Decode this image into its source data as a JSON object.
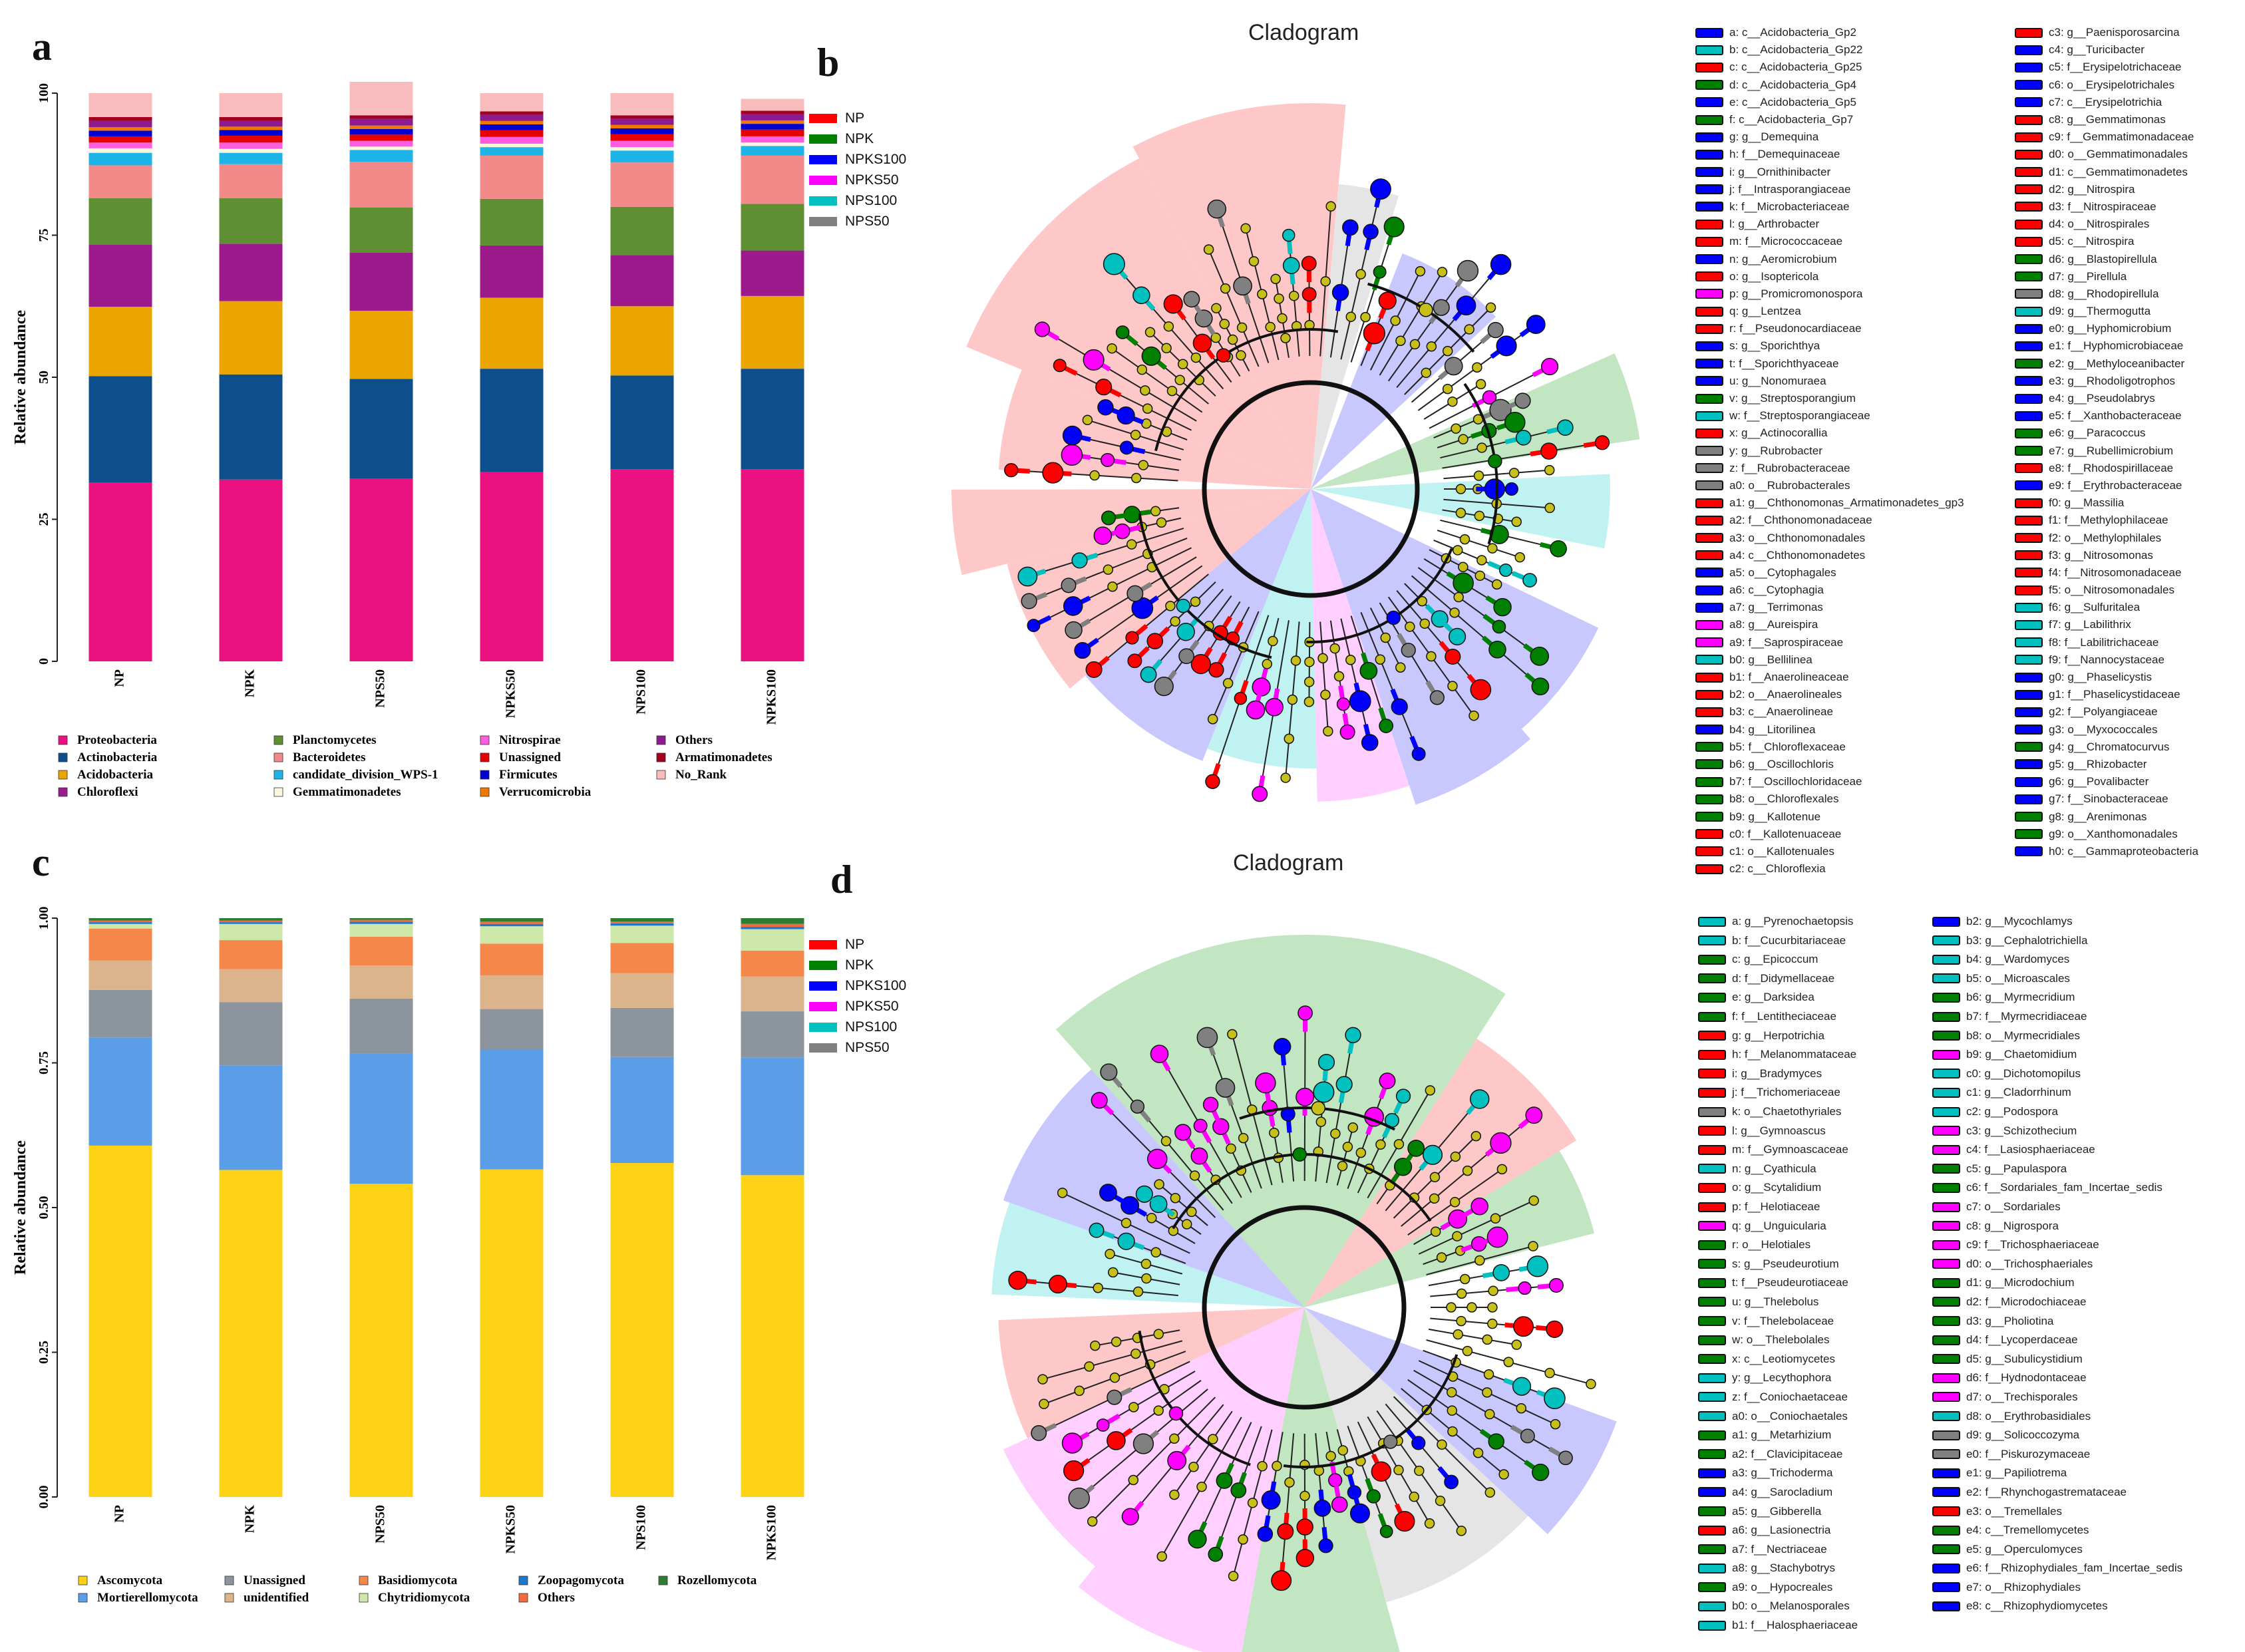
{
  "panels": {
    "a": "a",
    "b": "b",
    "c": "c",
    "d": "d"
  },
  "cladogram_titles": {
    "b": "Cladogram",
    "d": "Cladogram"
  },
  "groups": [
    {
      "name": "NP",
      "color": "#ff0000"
    },
    {
      "name": "NPK",
      "color": "#008000"
    },
    {
      "name": "NPKS100",
      "color": "#0000ff"
    },
    {
      "name": "NPKS50",
      "color": "#ff00ff"
    },
    {
      "name": "NPS100",
      "color": "#00c0c0"
    },
    {
      "name": "NPS50",
      "color": "#808080"
    }
  ],
  "chart_data": [
    {
      "panel": "a",
      "type": "bar",
      "stacked": true,
      "categories": [
        "NP",
        "NPK",
        "NPS50",
        "NPKS50",
        "NPS100",
        "NPKS100"
      ],
      "ylabel": "Relative abundance",
      "ylim": [
        0,
        100
      ],
      "yticks": [
        "0",
        "25",
        "50",
        "75",
        "100"
      ],
      "series": [
        {
          "name": "Proteobacteria",
          "color": "#ec1180",
          "values": [
            31.5,
            32.0,
            32.2,
            33.3,
            33.8,
            33.8
          ]
        },
        {
          "name": "Actinobacteria",
          "color": "#0c4f8c",
          "values": [
            18.7,
            18.5,
            17.5,
            18.2,
            16.5,
            17.7
          ]
        },
        {
          "name": "Acidobacteria",
          "color": "#eaa500",
          "values": [
            12.2,
            12.9,
            12.0,
            12.5,
            12.2,
            12.8
          ]
        },
        {
          "name": "Chloroflexi",
          "color": "#9c1a8c",
          "values": [
            10.9,
            10.1,
            10.2,
            9.2,
            9.0,
            8.0
          ]
        },
        {
          "name": "Planctomycetes",
          "color": "#5e8f32",
          "values": [
            8.2,
            8.0,
            8.0,
            8.2,
            8.5,
            8.2
          ]
        },
        {
          "name": "Bacteroidetes",
          "color": "#f38a8a",
          "values": [
            5.8,
            6.0,
            8.0,
            7.6,
            7.8,
            8.5
          ]
        },
        {
          "name": "candidate_division_WPS-1",
          "color": "#1eb4e8",
          "values": [
            2.2,
            2.0,
            2.1,
            1.5,
            2.1,
            1.7
          ]
        },
        {
          "name": "Gemmatimonadetes",
          "color": "#fbf7dc",
          "values": [
            0.8,
            0.7,
            0.6,
            0.6,
            0.6,
            0.6
          ]
        },
        {
          "name": "Nitrospirae",
          "color": "#ff5de0",
          "values": [
            1.0,
            1.1,
            1.0,
            1.2,
            1.1,
            1.1
          ]
        },
        {
          "name": "Unassigned",
          "color": "#e60000",
          "values": [
            1.1,
            1.2,
            1.1,
            1.2,
            1.2,
            1.2
          ]
        },
        {
          "name": "Firmicutes",
          "color": "#0000d0",
          "values": [
            1.0,
            1.0,
            1.0,
            1.0,
            1.0,
            1.0
          ]
        },
        {
          "name": "Verrucomicrobia",
          "color": "#f07800",
          "values": [
            0.6,
            0.6,
            0.6,
            0.6,
            0.6,
            0.6
          ]
        },
        {
          "name": "Others",
          "color": "#8e1b8e",
          "values": [
            1.2,
            1.1,
            1.2,
            1.1,
            1.1,
            1.1
          ]
        },
        {
          "name": "Armatimonadetes",
          "color": "#a1001f",
          "values": [
            0.6,
            0.6,
            0.6,
            0.6,
            0.6,
            0.6
          ]
        },
        {
          "name": "No_Rank",
          "color": "#f9bcbc",
          "values": [
            4.2,
            4.2,
            5.9,
            3.2,
            3.9,
            2.1
          ]
        }
      ]
    },
    {
      "panel": "c",
      "type": "bar",
      "stacked": true,
      "categories": [
        "NP",
        "NPK",
        "NPS50",
        "NPKS50",
        "NPS100",
        "NPKS100"
      ],
      "ylabel": "Relative abundance",
      "ylim": [
        0,
        1
      ],
      "yticks": [
        "0.00",
        "0.25",
        "0.50",
        "0.75",
        "1.00"
      ],
      "series": [
        {
          "name": "Ascomycota",
          "color": "#fdd214",
          "values": [
            0.607,
            0.565,
            0.541,
            0.566,
            0.577,
            0.556
          ]
        },
        {
          "name": "Mortierellomycota",
          "color": "#5a9ee8",
          "values": [
            0.187,
            0.18,
            0.225,
            0.207,
            0.183,
            0.203
          ]
        },
        {
          "name": "Unassigned",
          "color": "#8c959d",
          "values": [
            0.082,
            0.11,
            0.095,
            0.07,
            0.085,
            0.08
          ]
        },
        {
          "name": "unidentified",
          "color": "#dcb48c",
          "values": [
            0.051,
            0.057,
            0.057,
            0.058,
            0.06,
            0.06
          ]
        },
        {
          "name": "Basidiomycota",
          "color": "#f5874a",
          "values": [
            0.055,
            0.05,
            0.05,
            0.055,
            0.052,
            0.045
          ]
        },
        {
          "name": "Chytridiomycota",
          "color": "#cde8a8",
          "values": [
            0.008,
            0.028,
            0.022,
            0.03,
            0.03,
            0.037
          ]
        },
        {
          "name": "Zoopagomycota",
          "color": "#1f78c8",
          "values": [
            0.003,
            0.003,
            0.004,
            0.004,
            0.004,
            0.004
          ]
        },
        {
          "name": "Others",
          "color": "#f36a3c",
          "values": [
            0.003,
            0.003,
            0.003,
            0.004,
            0.003,
            0.005
          ]
        },
        {
          "name": "Rozellomycota",
          "color": "#2e7d32",
          "values": [
            0.004,
            0.004,
            0.003,
            0.006,
            0.006,
            0.01
          ]
        }
      ]
    }
  ],
  "legend_b": [
    [
      "a: c__Acidobacteria_Gp2",
      "#0000ff"
    ],
    [
      "b: c__Acidobacteria_Gp22",
      "#00c0c0"
    ],
    [
      "c: c__Acidobacteria_Gp25",
      "#ff0000"
    ],
    [
      "d: c__Acidobacteria_Gp4",
      "#008000"
    ],
    [
      "e: c__Acidobacteria_Gp5",
      "#0000ff"
    ],
    [
      "f: c__Acidobacteria_Gp7",
      "#008000"
    ],
    [
      "g: g__Demequina",
      "#0000ff"
    ],
    [
      "h: f__Demequinaceae",
      "#0000ff"
    ],
    [
      "i: g__Ornithinibacter",
      "#0000ff"
    ],
    [
      "j: f__Intrasporangiaceae",
      "#0000ff"
    ],
    [
      "k: f__Microbacteriaceae",
      "#0000ff"
    ],
    [
      "l: g__Arthrobacter",
      "#ff0000"
    ],
    [
      "m: f__Micrococcaceae",
      "#ff0000"
    ],
    [
      "n: g__Aeromicrobium",
      "#0000ff"
    ],
    [
      "o: g__Isoptericola",
      "#ff0000"
    ],
    [
      "p: g__Promicromonospora",
      "#ff00ff"
    ],
    [
      "q: g__Lentzea",
      "#ff0000"
    ],
    [
      "r: f__Pseudonocardiaceae",
      "#ff0000"
    ],
    [
      "s: g__Sporichthya",
      "#0000ff"
    ],
    [
      "t: f__Sporichthyaceae",
      "#0000ff"
    ],
    [
      "u: g__Nonomuraea",
      "#0000ff"
    ],
    [
      "v: g__Streptosporangium",
      "#008000"
    ],
    [
      "w: f__Streptosporangiaceae",
      "#00c0c0"
    ],
    [
      "x: g__Actinocorallia",
      "#ff0000"
    ],
    [
      "y: g__Rubrobacter",
      "#808080"
    ],
    [
      "z: f__Rubrobacteraceae",
      "#808080"
    ],
    [
      "a0: o__Rubrobacterales",
      "#808080"
    ],
    [
      "a1: g__Chthonomonas_Armatimonadetes_gp3",
      "#ff0000"
    ],
    [
      "a2: f__Chthonomonadaceae",
      "#ff0000"
    ],
    [
      "a3: o__Chthonomonadales",
      "#ff0000"
    ],
    [
      "a4: c__Chthonomonadetes",
      "#ff0000"
    ],
    [
      "a5: o__Cytophagales",
      "#0000ff"
    ],
    [
      "a6: c__Cytophagia",
      "#0000ff"
    ],
    [
      "a7: g__Terrimonas",
      "#0000ff"
    ],
    [
      "a8: g__Aureispira",
      "#ff00ff"
    ],
    [
      "a9: f__Saprospiraceae",
      "#ff00ff"
    ],
    [
      "b0: g__Bellilinea",
      "#00c0c0"
    ],
    [
      "b1: f__Anaerolineaceae",
      "#ff0000"
    ],
    [
      "b2: o__Anaerolineales",
      "#ff0000"
    ],
    [
      "b3: c__Anaerolineae",
      "#ff0000"
    ],
    [
      "b4: g__Litorilinea",
      "#0000ff"
    ],
    [
      "b5: f__Chloroflexaceae",
      "#008000"
    ],
    [
      "b6: g__Oscillochloris",
      "#008000"
    ],
    [
      "b7: f__Oscillochloridaceae",
      "#008000"
    ],
    [
      "b8: o__Chloroflexales",
      "#008000"
    ],
    [
      "b9: g__Kallotenue",
      "#008000"
    ],
    [
      "c0: f__Kallotenuaceae",
      "#ff0000"
    ],
    [
      "c1: o__Kallotenuales",
      "#ff0000"
    ],
    [
      "c2: c__Chloroflexia",
      "#ff0000"
    ],
    [
      "c3: g__Paenisporosarcina",
      "#ff0000"
    ],
    [
      "c4: g__Turicibacter",
      "#0000ff"
    ],
    [
      "c5: f__Erysipelotrichaceae",
      "#0000ff"
    ],
    [
      "c6: o__Erysipelotrichales",
      "#0000ff"
    ],
    [
      "c7: c__Erysipelotrichia",
      "#0000ff"
    ],
    [
      "c8: g__Gemmatimonas",
      "#ff0000"
    ],
    [
      "c9: f__Gemmatimonadaceae",
      "#ff0000"
    ],
    [
      "d0: o__Gemmatimonadales",
      "#ff0000"
    ],
    [
      "d1: c__Gemmatimonadetes",
      "#ff0000"
    ],
    [
      "d2: g__Nitrospira",
      "#ff0000"
    ],
    [
      "d3: f__Nitrospiraceae",
      "#ff0000"
    ],
    [
      "d4: o__Nitrospirales",
      "#ff0000"
    ],
    [
      "d5: c__Nitrospira",
      "#ff0000"
    ],
    [
      "d6: g__Blastopirellula",
      "#008000"
    ],
    [
      "d7: g__Pirellula",
      "#008000"
    ],
    [
      "d8: g__Rhodopirellula",
      "#808080"
    ],
    [
      "d9: g__Thermogutta",
      "#00c0c0"
    ],
    [
      "e0: g__Hyphomicrobium",
      "#0000ff"
    ],
    [
      "e1: f__Hyphomicrobiaceae",
      "#0000ff"
    ],
    [
      "e2: g__Methyloceanibacter",
      "#008000"
    ],
    [
      "e3: g__Rhodoligotrophos",
      "#0000ff"
    ],
    [
      "e4: g__Pseudolabrys",
      "#0000ff"
    ],
    [
      "e5: f__Xanthobacteraceae",
      "#0000ff"
    ],
    [
      "e6: g__Paracoccus",
      "#008000"
    ],
    [
      "e7: g__Rubellimicrobium",
      "#008000"
    ],
    [
      "e8: f__Rhodospirillaceae",
      "#ff0000"
    ],
    [
      "e9: f__Erythrobacteraceae",
      "#0000ff"
    ],
    [
      "f0: g__Massilia",
      "#ff0000"
    ],
    [
      "f1: f__Methylophilaceae",
      "#ff0000"
    ],
    [
      "f2: o__Methylophilales",
      "#ff0000"
    ],
    [
      "f3: g__Nitrosomonas",
      "#ff0000"
    ],
    [
      "f4: f__Nitrosomonadaceae",
      "#ff0000"
    ],
    [
      "f5: o__Nitrosomonadales",
      "#ff0000"
    ],
    [
      "f6: g__Sulfuritalea",
      "#00c0c0"
    ],
    [
      "f7: g__Labilithrix",
      "#00c0c0"
    ],
    [
      "f8: f__Labilitrichaceae",
      "#00c0c0"
    ],
    [
      "f9: f__Nannocystaceae",
      "#00c0c0"
    ],
    [
      "g0: g__Phaselicystis",
      "#0000ff"
    ],
    [
      "g1: f__Phaselicystidaceae",
      "#0000ff"
    ],
    [
      "g2: f__Polyangiaceae",
      "#0000ff"
    ],
    [
      "g3: o__Myxococcales",
      "#0000ff"
    ],
    [
      "g4: g__Chromatocurvus",
      "#008000"
    ],
    [
      "g5: g__Rhizobacter",
      "#0000ff"
    ],
    [
      "g6: g__Povalibacter",
      "#0000ff"
    ],
    [
      "g7: f__Sinobacteraceae",
      "#0000ff"
    ],
    [
      "g8: g__Arenimonas",
      "#008000"
    ],
    [
      "g9: o__Xanthomonadales",
      "#008000"
    ],
    [
      "h0: c__Gammaproteobacteria",
      "#0000ff"
    ]
  ],
  "legend_d": [
    [
      "a: g__Pyrenochaetopsis",
      "#00c0c0"
    ],
    [
      "b: f__Cucurbitariaceae",
      "#00c0c0"
    ],
    [
      "c: g__Epicoccum",
      "#008000"
    ],
    [
      "d: f__Didymellaceae",
      "#008000"
    ],
    [
      "e: g__Darksidea",
      "#008000"
    ],
    [
      "f: f__Lentitheciaceae",
      "#008000"
    ],
    [
      "g: g__Herpotrichia",
      "#ff0000"
    ],
    [
      "h: f__Melanommataceae",
      "#ff0000"
    ],
    [
      "i: g__Bradymyces",
      "#ff0000"
    ],
    [
      "j: f__Trichomeriaceae",
      "#ff0000"
    ],
    [
      "k: o__Chaetothyriales",
      "#808080"
    ],
    [
      "l: g__Gymnoascus",
      "#ff0000"
    ],
    [
      "m: f__Gymnoascaceae",
      "#ff0000"
    ],
    [
      "n: g__Cyathicula",
      "#00c0c0"
    ],
    [
      "o: g__Scytalidium",
      "#ff0000"
    ],
    [
      "p: f__Helotiaceae",
      "#ff0000"
    ],
    [
      "q: g__Unguicularia",
      "#ff00ff"
    ],
    [
      "r: o__Helotiales",
      "#008000"
    ],
    [
      "s: g__Pseudeurotium",
      "#008000"
    ],
    [
      "t: f__Pseudeurotiaceae",
      "#008000"
    ],
    [
      "u: g__Thelebolus",
      "#008000"
    ],
    [
      "v: f__Thelebolaceae",
      "#008000"
    ],
    [
      "w: o__Thelebolales",
      "#008000"
    ],
    [
      "x: c__Leotiomycetes",
      "#008000"
    ],
    [
      "y: g__Lecythophora",
      "#00c0c0"
    ],
    [
      "z: f__Coniochaetaceae",
      "#00c0c0"
    ],
    [
      "a0: o__Coniochaetales",
      "#00c0c0"
    ],
    [
      "a1: g__Metarhizium",
      "#008000"
    ],
    [
      "a2: f__Clavicipitaceae",
      "#008000"
    ],
    [
      "a3: g__Trichoderma",
      "#0000ff"
    ],
    [
      "a4: g__Sarocladium",
      "#0000ff"
    ],
    [
      "a5: g__Gibberella",
      "#008000"
    ],
    [
      "a6: g__Lasionectria",
      "#ff0000"
    ],
    [
      "a7: f__Nectriaceae",
      "#008000"
    ],
    [
      "a8: g__Stachybotrys",
      "#00c0c0"
    ],
    [
      "a9: o__Hypocreales",
      "#008000"
    ],
    [
      "b0: o__Melanosporales",
      "#00c0c0"
    ],
    [
      "b1: f__Halosphaeriaceae",
      "#00c0c0"
    ],
    [
      "b2: g__Mycochlamys",
      "#0000ff"
    ],
    [
      "b3: g__Cephalotrichiella",
      "#00c0c0"
    ],
    [
      "b4: g__Wardomyces",
      "#00c0c0"
    ],
    [
      "b5: o__Microascales",
      "#00c0c0"
    ],
    [
      "b6: g__Myrmecridium",
      "#008000"
    ],
    [
      "b7: f__Myrmecridiaceae",
      "#008000"
    ],
    [
      "b8: o__Myrmecridiales",
      "#008000"
    ],
    [
      "b9: g__Chaetomidium",
      "#ff00ff"
    ],
    [
      "c0: g__Dichotomopilus",
      "#00c0c0"
    ],
    [
      "c1: g__Cladorrhinum",
      "#00c0c0"
    ],
    [
      "c2: g__Podospora",
      "#00c0c0"
    ],
    [
      "c3: g__Schizothecium",
      "#ff00ff"
    ],
    [
      "c4: f__Lasiosphaeriaceae",
      "#ff00ff"
    ],
    [
      "c5: g__Papulaspora",
      "#008000"
    ],
    [
      "c6: f__Sordariales_fam_Incertae_sedis",
      "#008000"
    ],
    [
      "c7: o__Sordariales",
      "#ff00ff"
    ],
    [
      "c8: g__Nigrospora",
      "#ff00ff"
    ],
    [
      "c9: f__Trichosphaeriaceae",
      "#ff00ff"
    ],
    [
      "d0: o__Trichosphaeriales",
      "#ff00ff"
    ],
    [
      "d1: g__Microdochium",
      "#008000"
    ],
    [
      "d2: f__Microdochiaceae",
      "#008000"
    ],
    [
      "d3: g__Pholiotina",
      "#008000"
    ],
    [
      "d4: f__Lycoperdaceae",
      "#008000"
    ],
    [
      "d5: g__Subulicystidium",
      "#008000"
    ],
    [
      "d6: f__Hydnodontaceae",
      "#ff00ff"
    ],
    [
      "d7: o__Trechisporales",
      "#ff00ff"
    ],
    [
      "d8: o__Erythrobasidiales",
      "#00c0c0"
    ],
    [
      "d9: g__Solicoccozyma",
      "#808080"
    ],
    [
      "e0: f__Piskurozymaceae",
      "#808080"
    ],
    [
      "e1: g__Papiliotrema",
      "#0000ff"
    ],
    [
      "e2: f__Rhynchogastremataceae",
      "#0000ff"
    ],
    [
      "e3: o__Tremellales",
      "#ff0000"
    ],
    [
      "e4: c__Tremellomycetes",
      "#008000"
    ],
    [
      "e5: g__Operculomyces",
      "#008000"
    ],
    [
      "e6: f__Rhizophydiales_fam_Incertae_sedis",
      "#0000ff"
    ],
    [
      "e7: o__Rhizophydiales",
      "#0000ff"
    ],
    [
      "e8: c__Rhizophydiomycetes",
      "#0000ff"
    ]
  ]
}
